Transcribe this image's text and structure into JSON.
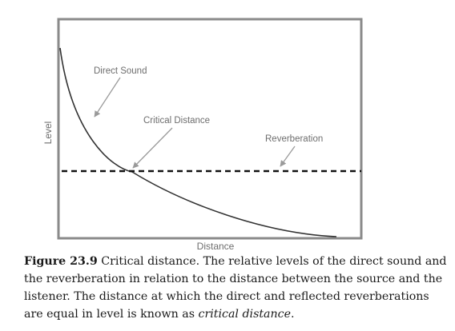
{
  "diagram": {
    "y_axis_label": "Level",
    "x_axis_label": "Distance",
    "labels": {
      "direct_sound": "Direct Sound",
      "critical_distance": "Critical Distance",
      "reverberation": "Reverberation"
    },
    "colors": {
      "frame": "#8a8a8a",
      "curve": "#333333",
      "dashed_line": "#111111",
      "text": "#6e6e6e"
    }
  },
  "caption": {
    "figure_number": "Figure 23.9",
    "text_before_emphasis": " Critical distance. The relative levels of the direct sound and the reverberation in relation to the distance between the source and the listener. The distance at which the direct and reflected reverberations are equal in level is known as ",
    "emphasis": "critical distance",
    "text_after_emphasis": "."
  }
}
